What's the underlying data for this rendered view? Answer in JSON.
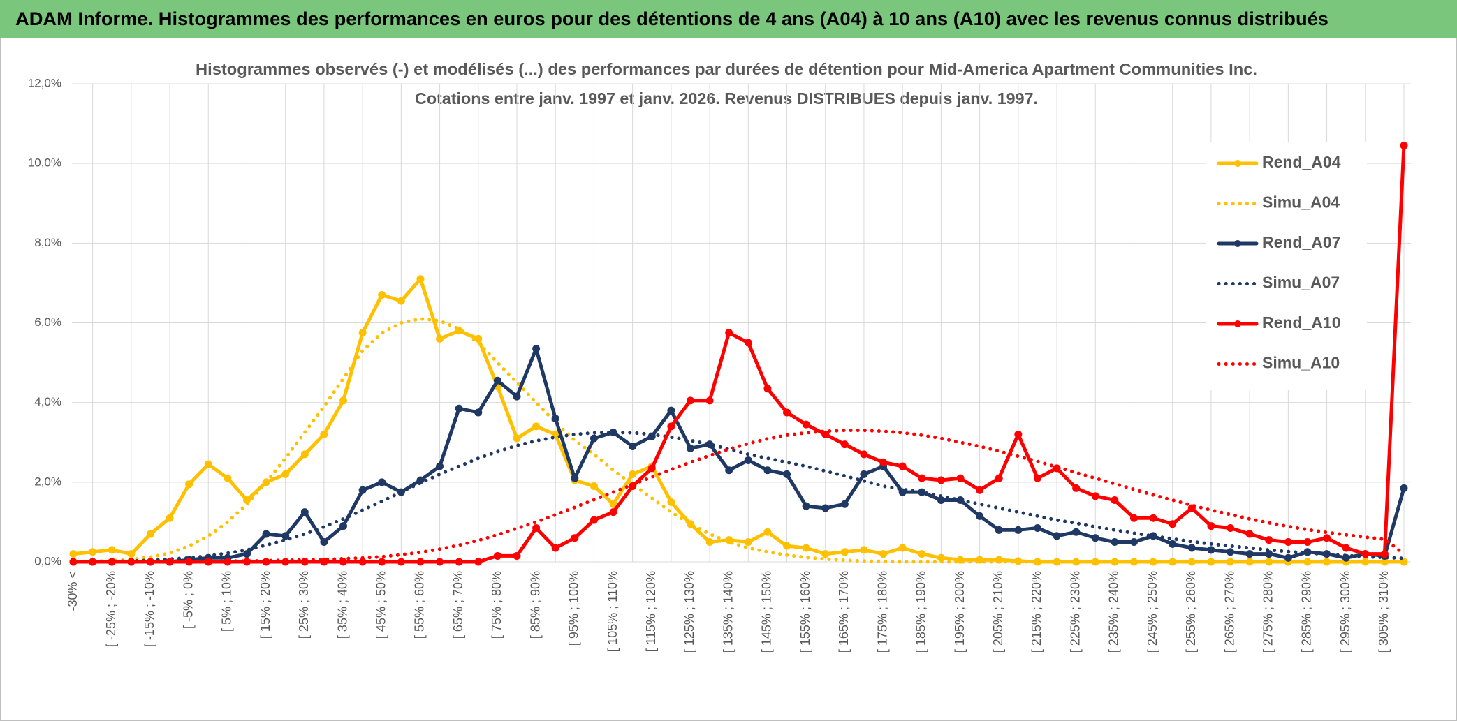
{
  "header": {
    "title": "ADAM Informe. Histogrammes des performances en euros pour des détentions de 4 ans (A04) à 10 ans (A10) avec les revenus connus distribués"
  },
  "chart_data": {
    "type": "line",
    "title": "Histogrammes observés (-) et modélisés (...) des performances par durées de détention pour Mid-America Apartment Communities Inc.",
    "subtitle": "Cotations entre janv. 1997 et janv. 2026. Revenus DISTRIBUES depuis janv. 1997.",
    "categories": [
      "-30% <",
      null,
      "[ -25% ; -20%",
      null,
      "[ -15% ; -10%",
      null,
      "[ -5% ; 0%",
      null,
      "[ 5% ; 10%",
      null,
      "[ 15% ; 20%",
      null,
      "[ 25% ; 30%",
      null,
      "[ 35% ; 40%",
      null,
      "[ 45% ; 50%",
      null,
      "[ 55% ; 60%",
      null,
      "[ 65% ; 70%",
      null,
      "[ 75% ; 80%",
      null,
      "[ 85% ; 90%",
      null,
      "[ 95% ; 100%",
      null,
      "[ 105% ; 110%",
      null,
      "[ 115% ; 120%",
      null,
      "[ 125% ; 130%",
      null,
      "[ 135% ; 140%",
      null,
      "[ 145% ; 150%",
      null,
      "[ 155% ; 160%",
      null,
      "[ 165% ; 170%",
      null,
      "[ 175% ; 180%",
      null,
      "[ 185% ; 190%",
      null,
      "[ 195% ; 200%",
      null,
      "[ 205% ; 210%",
      null,
      "[ 215% ; 220%",
      null,
      "[ 225% ; 230%",
      null,
      "[ 235% ; 240%",
      null,
      "[ 245% ; 250%",
      null,
      "[ 255% ; 260%",
      null,
      "[ 265% ; 270%",
      null,
      "[ 275% ; 280%",
      null,
      "[ 285% ; 290%",
      null,
      "[ 295% ; 300%",
      null,
      "[ 305% ; 310%",
      null
    ],
    "series": [
      {
        "name": "Rend_A04",
        "color": "#FFC000",
        "style": "solid",
        "markers": true,
        "values": [
          0.2,
          0.25,
          0.3,
          0.2,
          0.7,
          1.1,
          1.95,
          2.45,
          2.1,
          1.55,
          2.0,
          2.2,
          2.7,
          3.2,
          4.05,
          5.75,
          6.7,
          6.55,
          7.1,
          5.6,
          5.8,
          5.6,
          4.4,
          3.1,
          3.4,
          3.2,
          2.05,
          1.9,
          1.45,
          2.2,
          2.4,
          1.5,
          0.95,
          0.5,
          0.55,
          0.5,
          0.75,
          0.4,
          0.35,
          0.2,
          0.25,
          0.3,
          0.2,
          0.35,
          0.2,
          0.1,
          0.05,
          0.05,
          0.05,
          0.02,
          0,
          0,
          0,
          0,
          0,
          0,
          0,
          0,
          0,
          0,
          0,
          0,
          0,
          0,
          0,
          0,
          0,
          0,
          0,
          0
        ]
      },
      {
        "name": "Simu_A04",
        "color": "#FFC000",
        "style": "dotted",
        "markers": false,
        "values": [
          0,
          0.01,
          0.03,
          0.06,
          0.12,
          0.22,
          0.4,
          0.65,
          1.0,
          1.45,
          2.0,
          2.6,
          3.25,
          3.9,
          4.6,
          5.3,
          5.75,
          6.0,
          6.1,
          6.05,
          5.85,
          5.5,
          5.0,
          4.5,
          4.0,
          3.5,
          3.05,
          2.7,
          2.3,
          1.95,
          1.6,
          1.25,
          0.95,
          0.7,
          0.5,
          0.35,
          0.25,
          0.17,
          0.11,
          0.07,
          0.04,
          0.02,
          0.01,
          0,
          0,
          0,
          0,
          0,
          0,
          0,
          0,
          0,
          0,
          0,
          0,
          0,
          0,
          0,
          0,
          0,
          0,
          0,
          0,
          0,
          0,
          0,
          0,
          0,
          0,
          0
        ]
      },
      {
        "name": "Rend_A07",
        "color": "#1F3864",
        "style": "solid",
        "markers": true,
        "values": [
          0,
          0,
          0,
          0,
          0,
          0,
          0.05,
          0.1,
          0.1,
          0.2,
          0.7,
          0.65,
          1.25,
          0.5,
          0.9,
          1.8,
          2.0,
          1.75,
          2.05,
          2.4,
          3.85,
          3.75,
          4.55,
          4.15,
          5.35,
          3.6,
          2.1,
          3.1,
          3.25,
          2.9,
          3.15,
          3.8,
          2.85,
          2.95,
          2.3,
          2.55,
          2.3,
          2.2,
          1.4,
          1.35,
          1.45,
          2.2,
          2.4,
          1.75,
          1.75,
          1.55,
          1.55,
          1.15,
          0.8,
          0.8,
          0.85,
          0.65,
          0.75,
          0.6,
          0.5,
          0.5,
          0.65,
          0.45,
          0.35,
          0.3,
          0.25,
          0.2,
          0.2,
          0.1,
          0.25,
          0.2,
          0.1,
          0.2,
          0.15,
          1.85
        ]
      },
      {
        "name": "Simu_A07",
        "color": "#1F3864",
        "style": "dotted",
        "markers": false,
        "values": [
          0,
          0,
          0.01,
          0.02,
          0.04,
          0.07,
          0.1,
          0.15,
          0.22,
          0.3,
          0.42,
          0.55,
          0.7,
          0.88,
          1.08,
          1.3,
          1.52,
          1.75,
          1.98,
          2.2,
          2.4,
          2.6,
          2.77,
          2.92,
          3.04,
          3.13,
          3.2,
          3.24,
          3.25,
          3.24,
          3.2,
          3.13,
          3.05,
          2.95,
          2.83,
          2.7,
          2.6,
          2.5,
          2.4,
          2.28,
          2.16,
          2.03,
          1.9,
          1.82,
          1.75,
          1.65,
          1.55,
          1.45,
          1.35,
          1.25,
          1.15,
          1.05,
          0.97,
          0.88,
          0.8,
          0.72,
          0.65,
          0.58,
          0.51,
          0.45,
          0.4,
          0.35,
          0.3,
          0.26,
          0.22,
          0.19,
          0.16,
          0.13,
          0.11,
          0.09
        ]
      },
      {
        "name": "Rend_A10",
        "color": "#FF0000",
        "style": "solid",
        "markers": true,
        "values": [
          0,
          0,
          0,
          0,
          0,
          0,
          0,
          0,
          0,
          0,
          0,
          0,
          0,
          0,
          0,
          0,
          0,
          0,
          0,
          0,
          0,
          0,
          0.15,
          0.15,
          0.85,
          0.35,
          0.6,
          1.05,
          1.25,
          1.9,
          2.35,
          3.4,
          4.05,
          4.05,
          5.75,
          5.5,
          4.35,
          3.75,
          3.45,
          3.2,
          2.95,
          2.7,
          2.5,
          2.4,
          2.1,
          2.05,
          2.1,
          1.8,
          2.1,
          3.2,
          2.1,
          2.35,
          1.85,
          1.65,
          1.55,
          1.1,
          1.1,
          0.95,
          1.35,
          0.9,
          0.85,
          0.7,
          0.55,
          0.5,
          0.5,
          0.6,
          0.35,
          0.2,
          0.2,
          10.45
        ]
      },
      {
        "name": "Simu_A10",
        "color": "#FF0000",
        "style": "dotted",
        "markers": false,
        "values": [
          0,
          0,
          0,
          0,
          0,
          0.01,
          0.01,
          0.01,
          0.02,
          0.02,
          0.03,
          0.04,
          0.05,
          0.06,
          0.08,
          0.1,
          0.13,
          0.18,
          0.24,
          0.32,
          0.42,
          0.54,
          0.68,
          0.84,
          1.0,
          1.18,
          1.37,
          1.56,
          1.75,
          1.94,
          2.13,
          2.32,
          2.5,
          2.67,
          2.83,
          2.97,
          3.09,
          3.18,
          3.24,
          3.28,
          3.3,
          3.3,
          3.28,
          3.24,
          3.18,
          3.1,
          3.0,
          2.9,
          2.78,
          2.65,
          2.52,
          2.38,
          2.24,
          2.1,
          1.96,
          1.82,
          1.68,
          1.55,
          1.42,
          1.3,
          1.19,
          1.08,
          0.98,
          0.89,
          0.81,
          0.74,
          0.68,
          0.62,
          0.57,
          0.2
        ]
      }
    ],
    "ylim": [
      0,
      12
    ],
    "yticks": [
      {
        "value": 0,
        "label": "0,0%"
      },
      {
        "value": 2,
        "label": "2,0%"
      },
      {
        "value": 4,
        "label": "4,0%"
      },
      {
        "value": 6,
        "label": "6,0%"
      },
      {
        "value": 8,
        "label": "8,0%"
      },
      {
        "value": 10,
        "label": "10,0%"
      },
      {
        "value": 12,
        "label": "12,0%"
      }
    ],
    "grid": true,
    "legend": "right"
  }
}
